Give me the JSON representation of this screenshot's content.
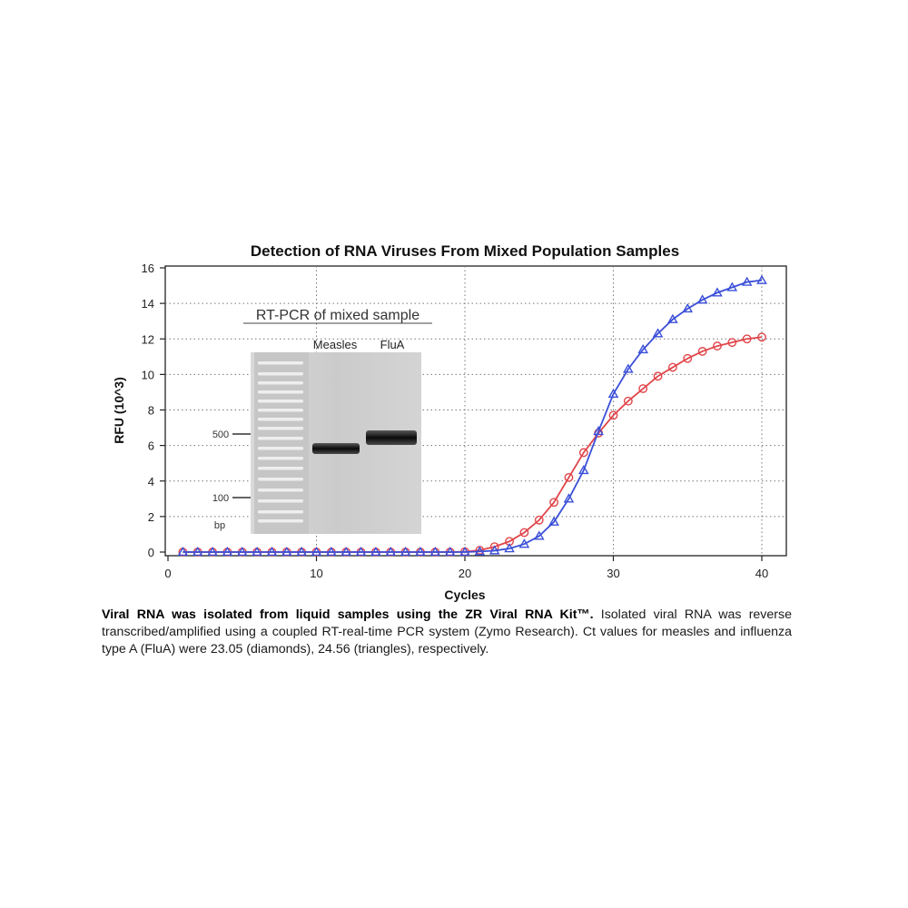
{
  "chart_data": {
    "type": "line",
    "title": "Detection of RNA Viruses From Mixed Population Samples",
    "xlabel": "Cycles",
    "ylabel": "RFU (10^3)",
    "xlim": [
      0,
      42
    ],
    "ylim": [
      0,
      16
    ],
    "xticks": [
      0,
      10,
      20,
      30,
      40
    ],
    "yticks": [
      0,
      2,
      4,
      6,
      8,
      10,
      12,
      14,
      16
    ],
    "grid": true,
    "series": [
      {
        "marker": "diamond",
        "color": "#e0454a",
        "x": [
          1,
          2,
          3,
          4,
          5,
          6,
          7,
          8,
          9,
          10,
          11,
          12,
          13,
          14,
          15,
          16,
          17,
          18,
          19,
          20,
          21,
          22,
          23,
          24,
          25,
          26,
          27,
          28,
          29,
          30,
          31,
          32,
          33,
          34,
          35,
          36,
          37,
          38,
          39,
          40
        ],
        "y": [
          0,
          0,
          0,
          0,
          0,
          0,
          0,
          0,
          0,
          0,
          0,
          0,
          0,
          0,
          0,
          0,
          0,
          0,
          0,
          0.02,
          0.1,
          0.3,
          0.6,
          1.1,
          1.8,
          2.8,
          4.2,
          5.6,
          6.7,
          7.7,
          8.5,
          9.2,
          9.9,
          10.4,
          10.9,
          11.3,
          11.6,
          11.8,
          12.0,
          12.1
        ]
      },
      {
        "marker": "triangle",
        "color": "#3b4fd8",
        "x": [
          1,
          2,
          3,
          4,
          5,
          6,
          7,
          8,
          9,
          10,
          11,
          12,
          13,
          14,
          15,
          16,
          17,
          18,
          19,
          20,
          21,
          22,
          23,
          24,
          25,
          26,
          27,
          28,
          29,
          30,
          31,
          32,
          33,
          34,
          35,
          36,
          37,
          38,
          39,
          40
        ],
        "y": [
          0,
          0,
          0,
          0,
          0,
          0,
          0,
          0,
          0,
          0,
          0,
          0,
          0,
          0,
          0,
          0,
          0,
          0,
          0,
          0,
          0.03,
          0.08,
          0.2,
          0.45,
          0.9,
          1.7,
          3.0,
          4.6,
          6.8,
          8.9,
          10.3,
          11.4,
          12.3,
          13.1,
          13.7,
          14.2,
          14.6,
          14.9,
          15.2,
          15.3
        ]
      }
    ]
  },
  "inset": {
    "title": "RT-PCR of mixed sample",
    "lane_measles": "Measles",
    "lane_flua": "FluA",
    "marker_500": "500",
    "marker_100": "100",
    "unit": "bp"
  },
  "caption": {
    "bold": "Viral RNA was isolated from liquid samples using the ZR Viral RNA Kit™.",
    "text": " Isolated viral RNA was reverse transcribed/amplified using a coupled RT-real-time PCR system (Zymo Research). Ct values for measles and influenza type A (FluA) were 23.05 (diamonds), 24.56 (triangles), respectively."
  }
}
